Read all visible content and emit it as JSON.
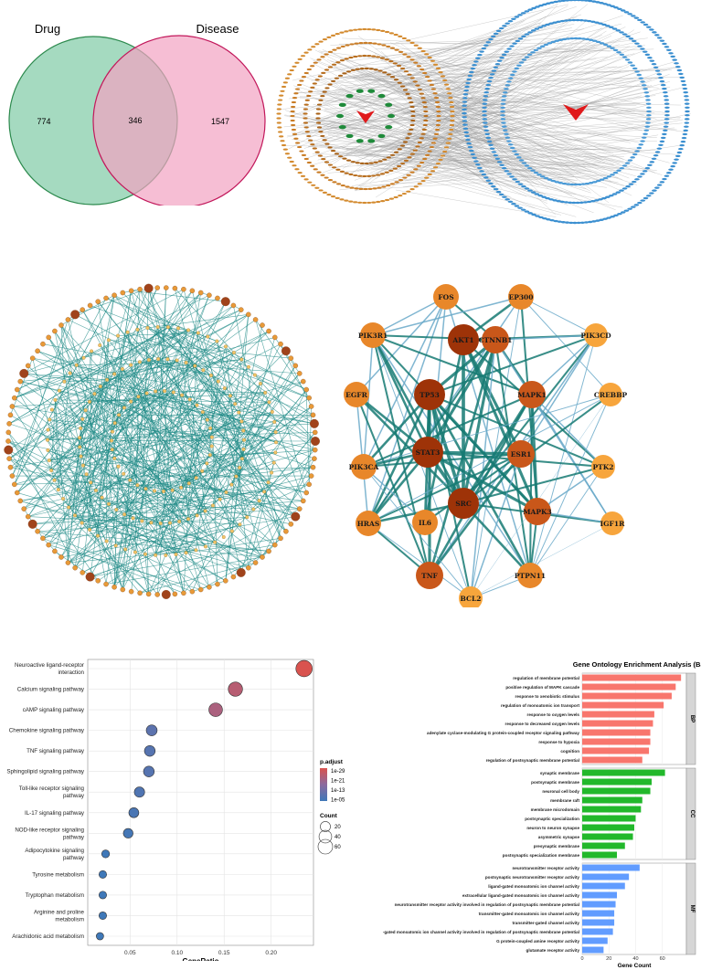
{
  "venn": {
    "left_label": "Drug",
    "right_label": "Disease",
    "left_only": "774",
    "overlap": "346",
    "right_only": "1547"
  },
  "ppi_hub": {
    "nodes": [
      {
        "name": "FOS",
        "tier": 1
      },
      {
        "name": "EP300",
        "tier": 1
      },
      {
        "name": "PIK3R1",
        "tier": 1
      },
      {
        "name": "PIK3CD",
        "tier": 0
      },
      {
        "name": "AKT1",
        "tier": 3
      },
      {
        "name": "CTNNB1",
        "tier": 2
      },
      {
        "name": "EGFR",
        "tier": 1
      },
      {
        "name": "TP53",
        "tier": 3
      },
      {
        "name": "MAPK1",
        "tier": 2
      },
      {
        "name": "CREBBP",
        "tier": 0
      },
      {
        "name": "STAT3",
        "tier": 3
      },
      {
        "name": "ESR1",
        "tier": 2
      },
      {
        "name": "PIK3CA",
        "tier": 1
      },
      {
        "name": "PTK2",
        "tier": 0
      },
      {
        "name": "SRC",
        "tier": 3
      },
      {
        "name": "MAPK3",
        "tier": 2
      },
      {
        "name": "HRAS",
        "tier": 1
      },
      {
        "name": "IL6",
        "tier": 1
      },
      {
        "name": "IGF1R",
        "tier": 0
      },
      {
        "name": "TNF",
        "tier": 2
      },
      {
        "name": "PTPN11",
        "tier": 1
      },
      {
        "name": "BCL2",
        "tier": 0
      }
    ]
  },
  "chart_data": [
    {
      "type": "scatter",
      "title": "",
      "xlabel": "GeneRatio",
      "ylabel": "",
      "xlim": [
        0.005,
        0.245
      ],
      "xticks": [
        "0.05",
        "0.10",
        "0.15",
        "0.20"
      ],
      "grid": true,
      "categories": [
        "Neuroactive ligand-receptor\ninteraction",
        "Calcium signaling pathway",
        "cAMP signaling pathway",
        "Chemokine signaling pathway",
        "TNF signaling pathway",
        "Sphingolipid signaling pathway",
        "Toll-like receptor signaling\npathway",
        "IL-17 signaling pathway",
        "NOD-like receptor signaling\npathway",
        "Adipocytokine signaling\npathway",
        "Tyrosine metabolism",
        "Tryptophan metabolism",
        "Arginine and proline\nmetabolism",
        "Arachidonic acid metabolism"
      ],
      "x": [
        0.235,
        0.162,
        0.141,
        0.073,
        0.071,
        0.07,
        0.06,
        0.054,
        0.048,
        0.024,
        0.021,
        0.021,
        0.021,
        0.018
      ],
      "count": [
        81,
        56,
        49,
        25,
        24,
        24,
        21,
        19,
        17,
        8,
        7,
        7,
        7,
        6
      ],
      "p_adjust_exp": [
        -32,
        -26,
        -24,
        -10,
        -9,
        -9,
        -8,
        -7,
        -6,
        -5,
        -5,
        -5,
        -5,
        -5
      ],
      "legend": {
        "color_title": "p.adjust",
        "color_labels": [
          "1e-29",
          "1e-21",
          "1e-13",
          "1e-05"
        ],
        "size_title": "Count",
        "size_labels": [
          "20",
          "40",
          "60"
        ],
        "placement": "right"
      },
      "colors": {
        "high": "#d9534f",
        "mid": "#8c6a9e",
        "low": "#3f78b8"
      }
    },
    {
      "type": "bar",
      "title": "Gene Ontology Enrichment Analysis (Barplot",
      "xlabel": "Gene Count",
      "xticks": [
        "0",
        "20",
        "40",
        "60"
      ],
      "xlim": [
        0,
        78
      ],
      "groups": [
        {
          "name": "BP",
          "color": "#f8766d",
          "categories": [
            "regulation of membrane potential",
            "positive regulation of MAPK cascade",
            "response to xenobiotic stimulus",
            "regulation of monoatomic ion transport",
            "response to oxygen levels",
            "response to decreased oxygen levels",
            "adenylate cyclase-modulating G protein-coupled receptor signaling pathway",
            "response to hypoxia",
            "cognition",
            "regulation of postsynaptic membrane potential"
          ],
          "values": [
            74,
            70,
            67,
            61,
            54,
            53,
            51,
            51,
            50,
            45
          ]
        },
        {
          "name": "CC",
          "color": "#22b82b",
          "categories": [
            "synaptic membrane",
            "postsynaptic membrane",
            "neuronal cell body",
            "membrane raft",
            "membrane microdomain",
            "postsynaptic specialization",
            "neuron to neuron synapse",
            "asymmetric synapse",
            "presynaptic membrane",
            "postsynaptic specialization membrane"
          ],
          "values": [
            62,
            52,
            51,
            45,
            44,
            40,
            39,
            38,
            32,
            26
          ]
        },
        {
          "name": "MF",
          "color": "#619cff",
          "categories": [
            "neurotransmitter receptor activity",
            "postsynaptic neurotransmitter receptor activity",
            "ligand-gated monoatomic ion channel activity",
            "extracellular ligand-gated monoatomic ion channel activity",
            "neurotransmitter receptor activity involved in regulation of postsynaptic membrane potential",
            "transmitter-gated monoatomic ion channel activity",
            "transmitter-gated channel activity",
            "-gated monoatomic ion channel activity involved in regulation of postsynaptic membrane potential",
            "G protein-coupled amine receptor activity",
            "glutamate receptor activity"
          ],
          "values": [
            43,
            35,
            32,
            26,
            25,
            24,
            24,
            23,
            19,
            16
          ]
        }
      ]
    }
  ]
}
